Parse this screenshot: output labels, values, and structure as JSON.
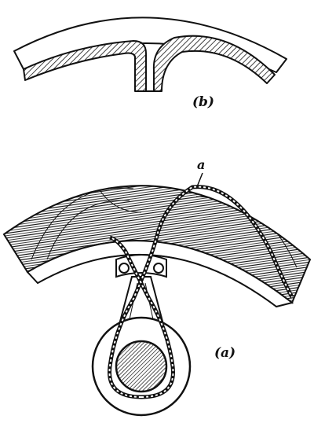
{
  "figure": {
    "labels": {
      "part_b": "(b)",
      "part_a": "(a)",
      "callout_a": "a"
    },
    "colors": {
      "ink": "#111111",
      "paper": "#ffffff"
    }
  }
}
